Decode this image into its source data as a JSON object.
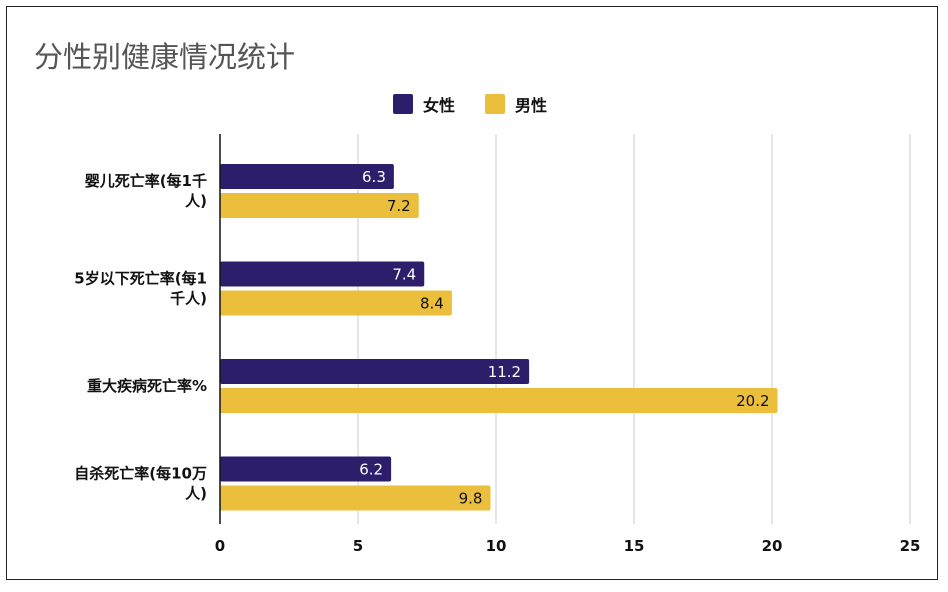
{
  "colors": {
    "female": "#2c1e6b",
    "male": "#ebbe3c",
    "grid": "#cccccc",
    "axis": "#111111"
  },
  "chart_data": {
    "type": "bar",
    "orientation": "horizontal",
    "title": "分性别健康情况统计",
    "categories": [
      [
        "婴儿死亡率(每1千",
        "人)"
      ],
      [
        "5岁以下死亡率(每1",
        "千人)"
      ],
      [
        "重大疾病死亡率%"
      ],
      [
        "自杀死亡率(每10万",
        "人)"
      ]
    ],
    "series": [
      {
        "name": "女性",
        "color": "#2c1e6b",
        "label_color": "#ffffff",
        "values": [
          6.3,
          7.4,
          11.2,
          6.2
        ]
      },
      {
        "name": "男性",
        "color": "#ebbe3c",
        "label_color": "#111111",
        "values": [
          7.2,
          8.4,
          20.2,
          9.8
        ]
      }
    ],
    "xlim": [
      0,
      25
    ],
    "xticks": [
      0,
      5,
      10,
      15,
      20,
      25
    ],
    "grid": true,
    "legend_position": "top-center"
  }
}
